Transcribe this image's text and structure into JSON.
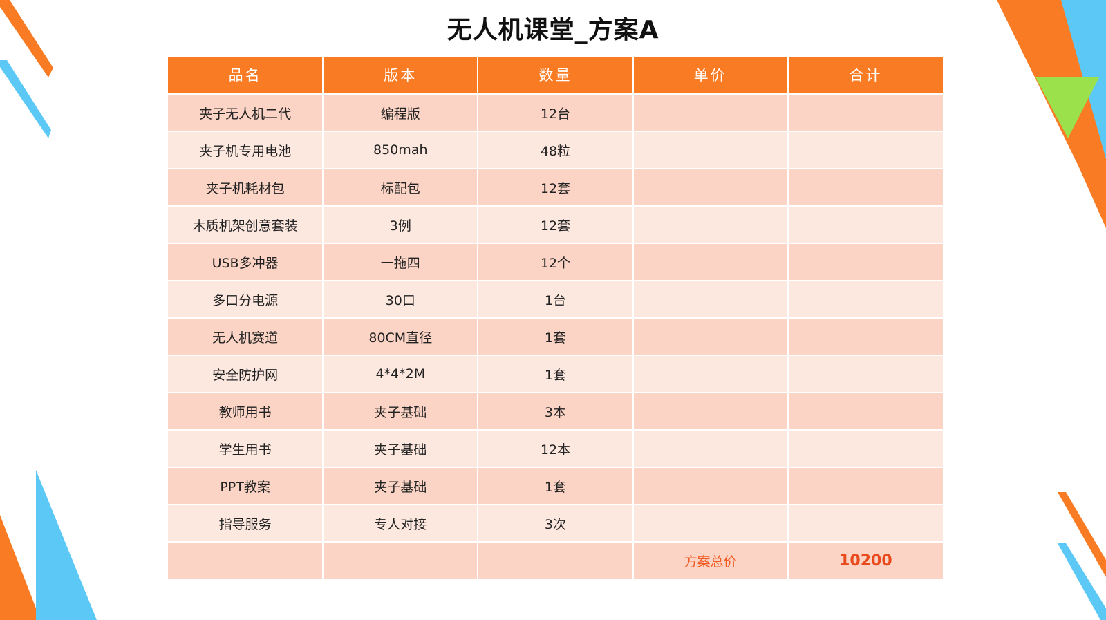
{
  "title": "无人机课堂_方案A",
  "table": {
    "headers": [
      "品名",
      "版本",
      "数量",
      "单价",
      "合计"
    ],
    "rows": [
      {
        "name": "夹子无人机二代",
        "version": "编程版",
        "quantity": "12台",
        "unit_price": "",
        "total": ""
      },
      {
        "name": "夹子机专用电池",
        "version": "850mah",
        "quantity": "48粒",
        "unit_price": "",
        "total": ""
      },
      {
        "name": "夹子机耗材包",
        "version": "标配包",
        "quantity": "12套",
        "unit_price": "",
        "total": ""
      },
      {
        "name": "木质机架创意套装",
        "version": "3例",
        "quantity": "12套",
        "unit_price": "",
        "total": ""
      },
      {
        "name": "USB多冲器",
        "version": "一拖四",
        "quantity": "12个",
        "unit_price": "",
        "total": ""
      },
      {
        "name": "多口分电源",
        "version": "30口",
        "quantity": "1台",
        "unit_price": "",
        "total": ""
      },
      {
        "name": "无人机赛道",
        "version": "80CM直径",
        "quantity": "1套",
        "unit_price": "",
        "total": ""
      },
      {
        "name": "安全防护网",
        "version": "4*4*2M",
        "quantity": "1套",
        "unit_price": "",
        "total": ""
      },
      {
        "name": "教师用书",
        "version": "夹子基础",
        "quantity": "3本",
        "unit_price": "",
        "total": ""
      },
      {
        "name": "学生用书",
        "version": "夹子基础",
        "quantity": "12本",
        "unit_price": "",
        "total": ""
      },
      {
        "name": "PPT教案",
        "version": "夹子基础",
        "quantity": "1套",
        "unit_price": "",
        "total": ""
      },
      {
        "name": "指导服务",
        "version": "专人对接",
        "quantity": "3次",
        "unit_price": "",
        "total": ""
      }
    ],
    "total_row": {
      "label": "方案总价",
      "value": "10200"
    }
  },
  "colors": {
    "header_bg": "#f97c24",
    "row_odd": "#fbd4c5",
    "row_even": "#fde8e0",
    "total_text": "#e84a1c",
    "accent_orange": "#f97c24",
    "accent_blue": "#5bc8f5",
    "accent_green": "#9be14b"
  }
}
